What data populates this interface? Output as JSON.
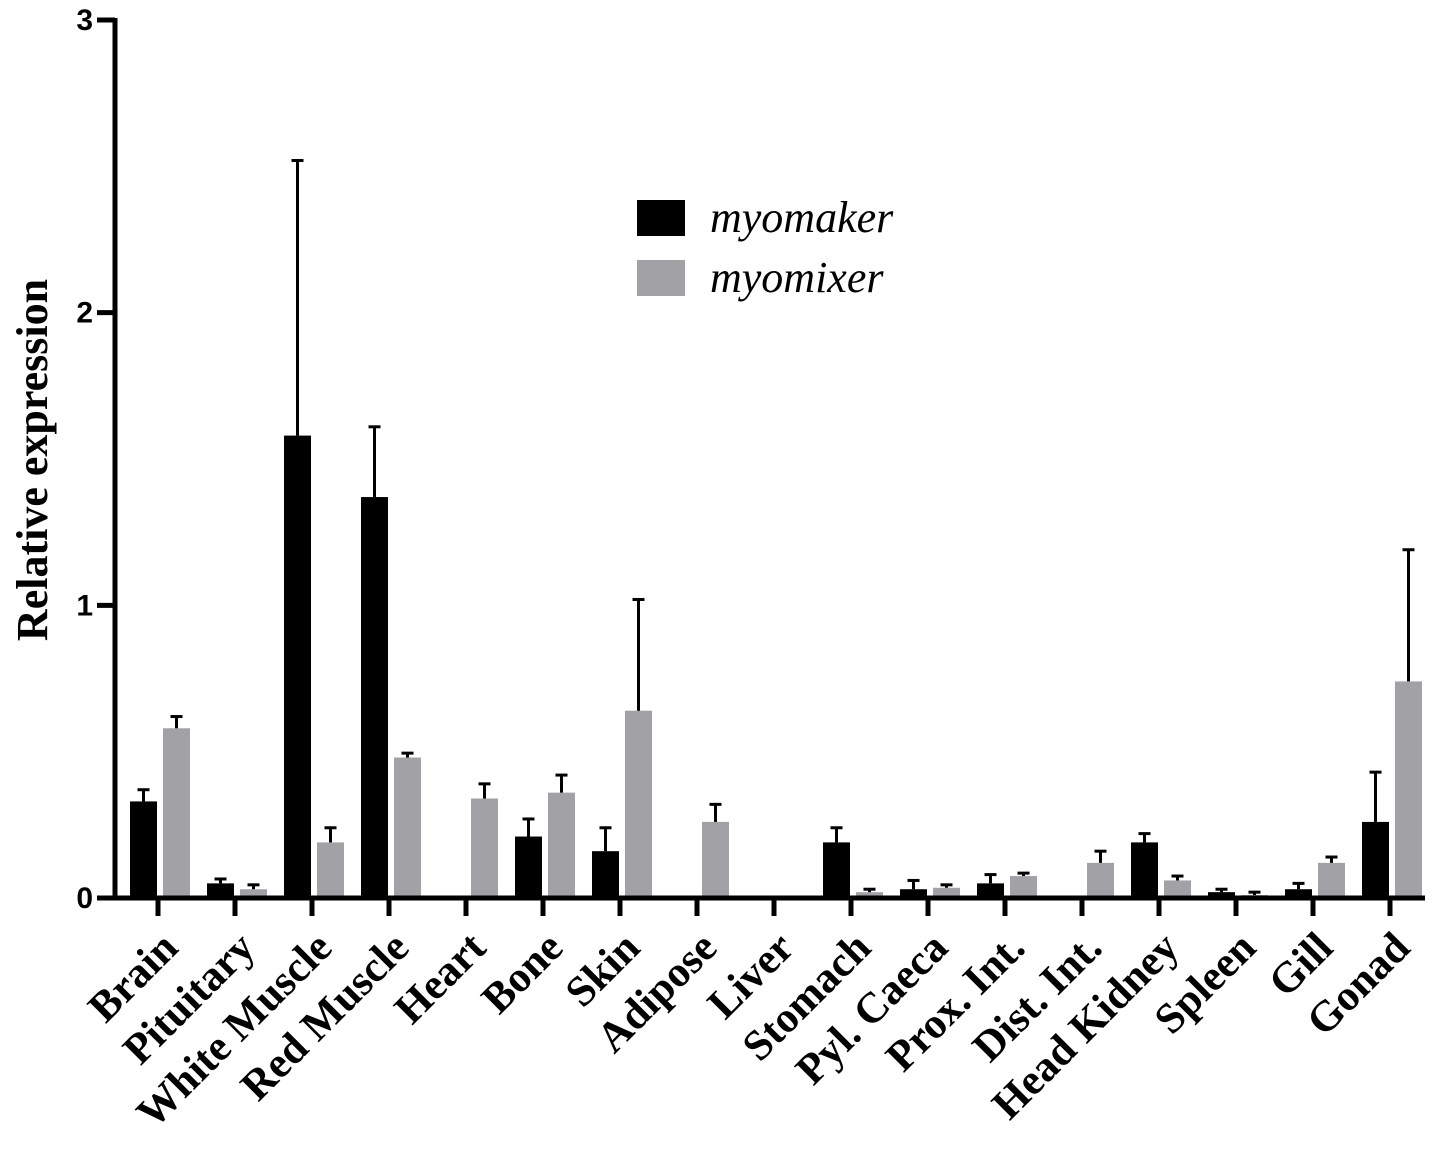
{
  "chart_data": {
    "type": "bar",
    "ylabel": "Relative expression",
    "xlabel": "",
    "ylim": [
      0,
      3
    ],
    "yticks": [
      0,
      1,
      2,
      3
    ],
    "categories": [
      "Brain",
      "Pituitary",
      "White Muscle",
      "Red Muscle",
      "Heart",
      "Bone",
      "Skin",
      "Adipose",
      "Liver",
      "Stomach",
      "Pyl. Caeca",
      "Prox. Int.",
      "Dist. Int.",
      "Head Kidney",
      "Spleen",
      "Gill",
      "Gonad"
    ],
    "series": [
      {
        "name": "myomaker",
        "color": "#000000",
        "values": [
          0.33,
          0.05,
          1.58,
          1.37,
          0,
          0.21,
          0.16,
          0,
          0,
          0.19,
          0.03,
          0.05,
          0,
          0.19,
          0.02,
          0.03,
          0.26
        ],
        "errors": [
          0.04,
          0.015,
          0.94,
          0.24,
          0,
          0.06,
          0.08,
          0,
          0,
          0.05,
          0.03,
          0.03,
          0,
          0.03,
          0.01,
          0.02,
          0.17
        ]
      },
      {
        "name": "myomixer",
        "color": "#a2a2a6",
        "values": [
          0.58,
          0.03,
          0.19,
          0.48,
          0.34,
          0.36,
          0.64,
          0.26,
          0,
          0.02,
          0.035,
          0.075,
          0.12,
          0.06,
          0.01,
          0.12,
          0.74
        ],
        "errors": [
          0.04,
          0.015,
          0.05,
          0.015,
          0.05,
          0.06,
          0.38,
          0.06,
          0,
          0.01,
          0.01,
          0.01,
          0.04,
          0.015,
          0.01,
          0.02,
          0.45
        ]
      }
    ],
    "legend": {
      "position": "top-center"
    },
    "grid": false
  }
}
